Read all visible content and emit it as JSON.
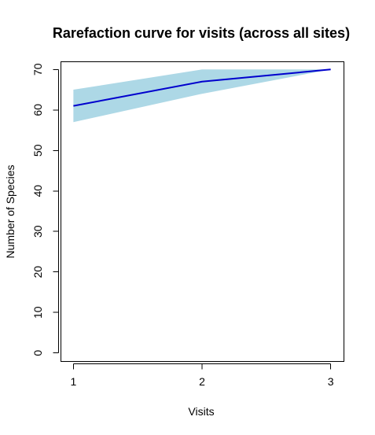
{
  "chart_data": {
    "type": "area",
    "title": "Rarefaction curve for visits (across all sites)",
    "xlabel": "Visits",
    "ylabel": "Number of Species",
    "x": [
      1,
      2,
      3
    ],
    "xlim": [
      0.9,
      3.1
    ],
    "ylim": [
      -2,
      72
    ],
    "x_ticks": [
      1,
      2,
      3
    ],
    "y_ticks": [
      0,
      10,
      20,
      30,
      40,
      50,
      60,
      70
    ],
    "grid": false,
    "legend": "none",
    "colors": {
      "band": "#add8e6",
      "line": "#0000cd",
      "axis": "#000000"
    },
    "series": [
      {
        "type": "line",
        "values": [
          61,
          67,
          70
        ]
      },
      {
        "type": "band",
        "lower": [
          57,
          64,
          70
        ],
        "upper": [
          65,
          70,
          70
        ]
      }
    ]
  }
}
